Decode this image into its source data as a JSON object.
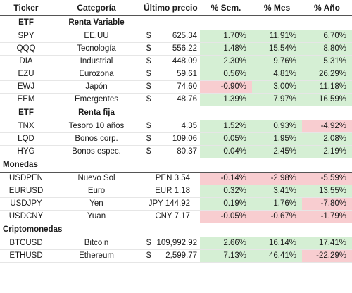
{
  "headers": [
    "Ticker",
    "Categoría",
    "Último precio",
    "% Sem.",
    "% Mes",
    "% Año"
  ],
  "sections": [
    {
      "name": "ETF",
      "subtitle": "Renta Variable",
      "rows": [
        {
          "ticker": "SPY",
          "category": "EE.UU",
          "currency": "$",
          "price": "625.34",
          "week": "1.70%",
          "month": "11.91%",
          "year": "6.70%"
        },
        {
          "ticker": "QQQ",
          "category": "Tecnología",
          "currency": "$",
          "price": "556.22",
          "week": "1.48%",
          "month": "15.54%",
          "year": "8.80%"
        },
        {
          "ticker": "DIA",
          "category": "Industrial",
          "currency": "$",
          "price": "448.09",
          "week": "2.30%",
          "month": "9.76%",
          "year": "5.31%"
        },
        {
          "ticker": "EZU",
          "category": "Eurozona",
          "currency": "$",
          "price": "59.61",
          "week": "0.56%",
          "month": "4.81%",
          "year": "26.29%"
        },
        {
          "ticker": "EWJ",
          "category": "Japón",
          "currency": "$",
          "price": "74.60",
          "week": "-0.90%",
          "month": "3.00%",
          "year": "11.18%"
        },
        {
          "ticker": "EEM",
          "category": "Emergentes",
          "currency": "$",
          "price": "48.76",
          "week": "1.39%",
          "month": "7.97%",
          "year": "16.59%"
        }
      ]
    },
    {
      "name": "ETF",
      "subtitle": "Renta fija",
      "rows": [
        {
          "ticker": "TNX",
          "category": "Tesoro 10 años",
          "currency": "$",
          "price": "4.35",
          "week": "1.52%",
          "month": "0.93%",
          "year": "-4.92%"
        },
        {
          "ticker": "LQD",
          "category": "Bonos corp.",
          "currency": "$",
          "price": "109.06",
          "week": "0.05%",
          "month": "1.95%",
          "year": "2.08%"
        },
        {
          "ticker": "HYG",
          "category": "Bonos espec.",
          "currency": "$",
          "price": "80.37",
          "week": "0.04%",
          "month": "2.45%",
          "year": "2.19%"
        }
      ]
    },
    {
      "name": "Monedas",
      "subtitle": "",
      "rows": [
        {
          "ticker": "USDPEN",
          "category": "Nuevo Sol",
          "currency": "",
          "price": "PEN 3.54",
          "week": "-0.14%",
          "month": "-2.98%",
          "year": "-5.59%"
        },
        {
          "ticker": "EURUSD",
          "category": "Euro",
          "currency": "",
          "price": "EUR 1.18",
          "week": "0.32%",
          "month": "3.41%",
          "year": "13.55%"
        },
        {
          "ticker": "USDJPY",
          "category": "Yen",
          "currency": "",
          "price": "JPY 144.92",
          "week": "0.19%",
          "month": "1.76%",
          "year": "-7.80%"
        },
        {
          "ticker": "USDCNY",
          "category": "Yuan",
          "currency": "",
          "price": "CNY 7.17",
          "week": "-0.05%",
          "month": "-0.67%",
          "year": "-1.79%"
        }
      ]
    },
    {
      "name": "Criptomonedas",
      "subtitle": "",
      "rows": [
        {
          "ticker": "BTCUSD",
          "category": "Bitcoin",
          "currency": "$",
          "price": "109,992.92",
          "week": "2.66%",
          "month": "16.14%",
          "year": "17.41%"
        },
        {
          "ticker": "ETHUSD",
          "category": "Ethereum",
          "currency": "$",
          "price": "2,599.77",
          "week": "7.13%",
          "month": "46.41%",
          "year": "-22.29%"
        }
      ]
    }
  ],
  "colors": {
    "positive": "#d5efd4",
    "negative": "#f8cdd0",
    "rule": "#555555"
  }
}
